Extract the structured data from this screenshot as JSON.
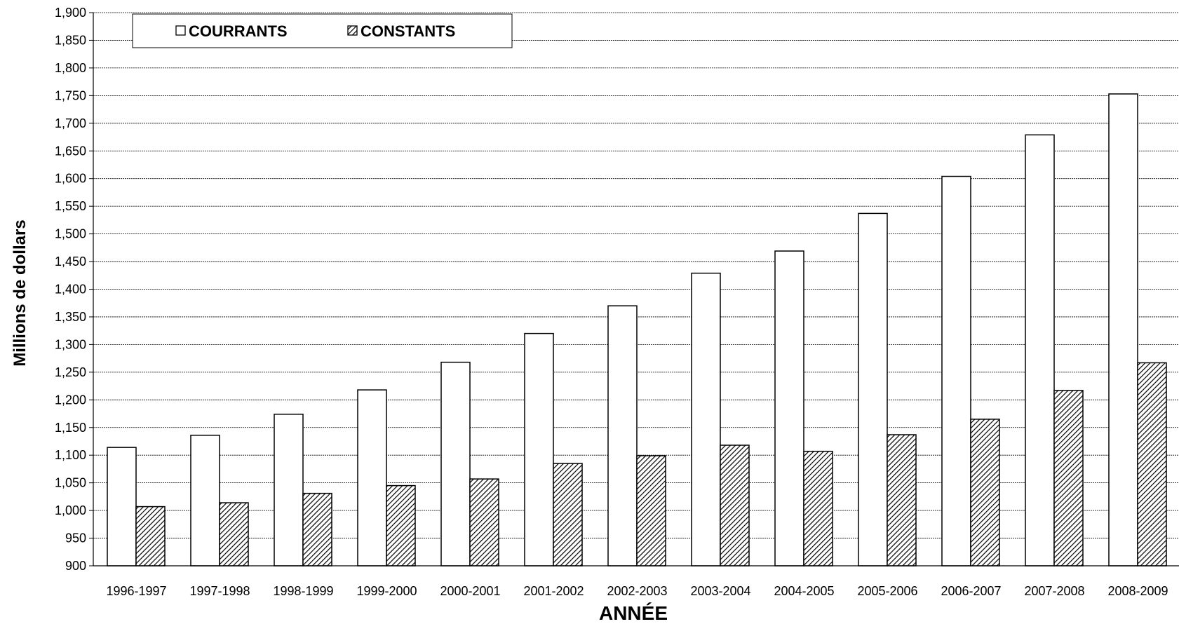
{
  "chart_data": {
    "type": "bar",
    "title": "",
    "xlabel": "ANNÉE",
    "ylabel": "Millions de dollars",
    "ylim": [
      900,
      1900
    ],
    "ytick_step": 50,
    "yticks": [
      "900",
      "950",
      "1,000",
      "1,050",
      "1,100",
      "1,150",
      "1,200",
      "1,250",
      "1,300",
      "1,350",
      "1,400",
      "1,450",
      "1,500",
      "1,550",
      "1,600",
      "1,650",
      "1,700",
      "1,750",
      "1,800",
      "1,850",
      "1,900"
    ],
    "grid": true,
    "legend_position": "top-left",
    "categories": [
      "1996-1997",
      "1997-1998",
      "1998-1999",
      "1999-2000",
      "2000-2001",
      "2001-2002",
      "2002-2003",
      "2003-2004",
      "2004-2005",
      "2005-2006",
      "2006-2007",
      "2007-2008",
      "2008-2009"
    ],
    "series": [
      {
        "name": "COURRANTS",
        "fill": "white",
        "values": [
          1114,
          1136,
          1174,
          1218,
          1268,
          1320,
          1370,
          1429,
          1469,
          1537,
          1604,
          1679,
          1753
        ]
      },
      {
        "name": "CONSTANTS",
        "fill": "hatched",
        "values": [
          1007,
          1014,
          1031,
          1045,
          1057,
          1085,
          1099,
          1118,
          1107,
          1137,
          1165,
          1217,
          1267
        ]
      }
    ]
  },
  "colors": {
    "bar_outline": "#000000",
    "bar_fill": "#ffffff",
    "gridline": "#000000"
  }
}
